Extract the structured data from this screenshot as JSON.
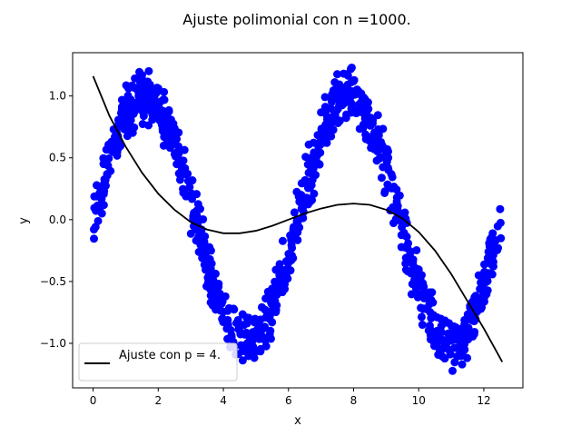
{
  "chart_data": {
    "type": "scatter",
    "title": "Ajuste polimonial con n =1000.",
    "xlabel": "x",
    "ylabel": "y",
    "xlim": [
      -0.63,
      13.2
    ],
    "ylim": [
      -1.36,
      1.35
    ],
    "grid": false,
    "legend_placement": "lower-left",
    "x_ticks": [
      0,
      2,
      4,
      6,
      8,
      10,
      12
    ],
    "x_tick_labels": [
      "0",
      "2",
      "4",
      "6",
      "8",
      "10",
      "12"
    ],
    "y_ticks": [
      -1.0,
      -0.5,
      0.0,
      0.5,
      1.0
    ],
    "y_tick_labels": [
      "−1.0",
      "−0.5",
      "0.0",
      "0.5",
      "1.0"
    ],
    "scatter_series": {
      "n": 1000,
      "x_range": [
        0,
        12.566
      ],
      "model": "sin(x) + noise",
      "noise_amplitude": 0.15,
      "color": "#0000ff"
    },
    "fit_series": {
      "name": "Ajuste con p = 4.",
      "color": "#000000",
      "x": [
        0,
        0.5,
        1,
        1.5,
        2,
        2.5,
        3,
        3.5,
        4,
        4.5,
        5,
        5.5,
        6,
        6.5,
        7,
        7.5,
        8,
        8.5,
        9,
        9.5,
        10,
        10.5,
        11,
        11.5,
        12,
        12.566
      ],
      "y": [
        1.16,
        0.84,
        0.59,
        0.38,
        0.21,
        0.08,
        -0.02,
        -0.08,
        -0.11,
        -0.11,
        -0.09,
        -0.05,
        0.0,
        0.05,
        0.09,
        0.12,
        0.13,
        0.12,
        0.08,
        0.01,
        -0.1,
        -0.25,
        -0.44,
        -0.66,
        -0.88,
        -1.15
      ]
    }
  }
}
